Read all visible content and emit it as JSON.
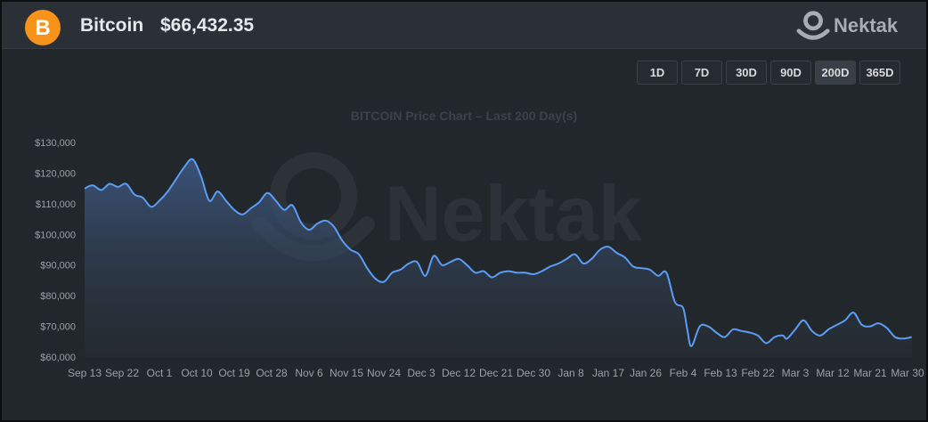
{
  "header": {
    "coin_name": "Bitcoin",
    "price": "$66,432.35",
    "coin_symbol": "B",
    "brand": "Nektak",
    "accent": "#f7931a"
  },
  "range_buttons": [
    {
      "label": "1D",
      "active": false
    },
    {
      "label": "7D",
      "active": false
    },
    {
      "label": "30D",
      "active": false
    },
    {
      "label": "90D",
      "active": false
    },
    {
      "label": "200D",
      "active": true
    },
    {
      "label": "365D",
      "active": false
    }
  ],
  "chart_data": {
    "type": "area",
    "title": "BITCOIN Price Chart – Last 200 Day(s)",
    "watermark": "Nektak",
    "x_tick_labels": [
      "Sep 13",
      "Sep 22",
      "Oct 1",
      "Oct 10",
      "Oct 19",
      "Oct 28",
      "Nov 6",
      "Nov 15",
      "Nov 24",
      "Dec 3",
      "Dec 12",
      "Dec 21",
      "Dec 30",
      "Jan 8",
      "Jan 17",
      "Jan 26",
      "Feb 4",
      "Feb 13",
      "Feb 22",
      "Mar 3",
      "Mar 12",
      "Mar 21",
      "Mar 30"
    ],
    "y_tick_labels": [
      "$60,000",
      "$70,000",
      "$80,000",
      "$90,000",
      "$100,000",
      "$110,000",
      "$120,000",
      "$130,000"
    ],
    "ylim": [
      60000,
      130000
    ],
    "line_color": "#5b9cf5",
    "grid": false,
    "points": [
      [
        "Sep 13",
        115000
      ],
      [
        "Sep 15",
        116000
      ],
      [
        "Sep 17",
        114500
      ],
      [
        "Sep 19",
        116500
      ],
      [
        "Sep 21",
        115500
      ],
      [
        "Sep 23",
        116500
      ],
      [
        "Sep 25",
        113000
      ],
      [
        "Sep 27",
        112000
      ],
      [
        "Sep 29",
        109000
      ],
      [
        "Oct 1",
        111000
      ],
      [
        "Oct 3",
        114000
      ],
      [
        "Oct 5",
        118000
      ],
      [
        "Oct 7",
        122000
      ],
      [
        "Oct 9",
        124500
      ],
      [
        "Oct 11",
        119000
      ],
      [
        "Oct 13",
        111000
      ],
      [
        "Oct 15",
        114000
      ],
      [
        "Oct 17",
        111000
      ],
      [
        "Oct 19",
        108000
      ],
      [
        "Oct 21",
        106500
      ],
      [
        "Oct 23",
        108500
      ],
      [
        "Oct 25",
        110500
      ],
      [
        "Oct 27",
        113500
      ],
      [
        "Oct 29",
        111000
      ],
      [
        "Oct 31",
        108000
      ],
      [
        "Nov 2",
        109500
      ],
      [
        "Nov 4",
        104000
      ],
      [
        "Nov 6",
        101500
      ],
      [
        "Nov 8",
        103500
      ],
      [
        "Nov 10",
        104500
      ],
      [
        "Nov 12",
        102500
      ],
      [
        "Nov 14",
        98000
      ],
      [
        "Nov 16",
        95000
      ],
      [
        "Nov 18",
        93500
      ],
      [
        "Nov 20",
        89000
      ],
      [
        "Nov 22",
        85500
      ],
      [
        "Nov 24",
        84500
      ],
      [
        "Nov 26",
        87500
      ],
      [
        "Nov 28",
        88500
      ],
      [
        "Nov 30",
        90500
      ],
      [
        "Dec 2",
        91000
      ],
      [
        "Dec 4",
        86500
      ],
      [
        "Dec 6",
        93000
      ],
      [
        "Dec 8",
        90000
      ],
      [
        "Dec 10",
        91000
      ],
      [
        "Dec 12",
        92000
      ],
      [
        "Dec 14",
        90000
      ],
      [
        "Dec 16",
        87500
      ],
      [
        "Dec 18",
        88000
      ],
      [
        "Dec 20",
        86000
      ],
      [
        "Dec 22",
        87500
      ],
      [
        "Dec 24",
        88000
      ],
      [
        "Dec 26",
        87500
      ],
      [
        "Dec 28",
        87500
      ],
      [
        "Dec 30",
        87000
      ],
      [
        "Jan 1",
        88000
      ],
      [
        "Jan 3",
        89500
      ],
      [
        "Jan 5",
        90500
      ],
      [
        "Jan 7",
        92000
      ],
      [
        "Jan 9",
        93500
      ],
      [
        "Jan 11",
        90500
      ],
      [
        "Jan 13",
        92000
      ],
      [
        "Jan 15",
        95000
      ],
      [
        "Jan 17",
        96000
      ],
      [
        "Jan 19",
        94000
      ],
      [
        "Jan 21",
        92500
      ],
      [
        "Jan 23",
        89500
      ],
      [
        "Jan 25",
        89000
      ],
      [
        "Jan 27",
        88500
      ],
      [
        "Jan 29",
        86500
      ],
      [
        "Jan 31",
        87500
      ],
      [
        "Feb 2",
        78000
      ],
      [
        "Feb 4",
        76000
      ],
      [
        "Feb 5",
        69000
      ],
      [
        "Feb 6",
        63500
      ],
      [
        "Feb 8",
        70000
      ],
      [
        "Feb 10",
        70000
      ],
      [
        "Feb 12",
        68000
      ],
      [
        "Feb 14",
        66500
      ],
      [
        "Feb 16",
        69000
      ],
      [
        "Feb 18",
        68500
      ],
      [
        "Feb 20",
        68000
      ],
      [
        "Feb 22",
        67000
      ],
      [
        "Feb 24",
        64500
      ],
      [
        "Feb 26",
        66500
      ],
      [
        "Feb 28",
        67000
      ],
      [
        "Mar 1",
        66000
      ],
      [
        "Mar 3",
        69000
      ],
      [
        "Mar 5",
        72000
      ],
      [
        "Mar 7",
        68500
      ],
      [
        "Mar 9",
        67000
      ],
      [
        "Mar 11",
        69000
      ],
      [
        "Mar 13",
        70500
      ],
      [
        "Mar 15",
        72000
      ],
      [
        "Mar 17",
        74500
      ],
      [
        "Mar 19",
        70500
      ],
      [
        "Mar 21",
        70000
      ],
      [
        "Mar 23",
        71000
      ],
      [
        "Mar 25",
        69500
      ],
      [
        "Mar 27",
        66500
      ],
      [
        "Mar 29",
        66000
      ],
      [
        "Mar 31",
        66500
      ]
    ]
  }
}
